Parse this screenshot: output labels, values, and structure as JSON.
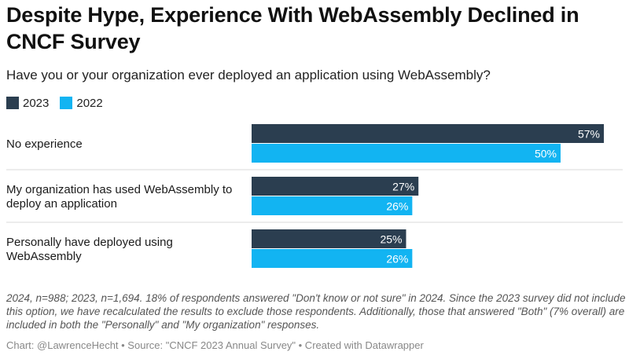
{
  "header": {
    "title": "Despite Hype, Experience With WebAssembly Declined in CNCF Survey",
    "subtitle": "Have you or your organization ever deployed an application using WebAssembly?"
  },
  "legend": [
    {
      "label": "2023",
      "color": "#2b3e50"
    },
    {
      "label": "2022",
      "color": "#12b4f2"
    }
  ],
  "chart_data": {
    "type": "bar",
    "orientation": "horizontal",
    "categories": [
      "No experience",
      "My organization has used WebAssembly to deploy an application",
      "Personally have deployed using WebAssembly"
    ],
    "category_lines": [
      [
        "No experience"
      ],
      [
        "My organization has used WebAssembly to",
        "deploy an application"
      ],
      [
        "Personally have deployed using",
        "WebAssembly"
      ]
    ],
    "series": [
      {
        "name": "2023",
        "color": "#2b3e50",
        "values": [
          57,
          27,
          25
        ],
        "labels": [
          "57%",
          "27%",
          "25%"
        ]
      },
      {
        "name": "2022",
        "color": "#12b4f2",
        "values": [
          50,
          26,
          26
        ],
        "labels": [
          "50%",
          "26%",
          "26%"
        ]
      }
    ],
    "xlim": [
      0,
      57
    ],
    "grid": false,
    "legend_position": "top-left"
  },
  "footer": {
    "note": "2024, n=988; 2023, n=1,694. 18% of respondents answered \"Don't know or not sure\" in 2024. Since the 2023 survey did not include this option, we have recalculated the results to exclude those respondents. Additionally, those that answered \"Both\" (7% overall) are included in both the \"Personally\" and \"My organization\" responses.",
    "credit": "Chart: @LawrenceHecht • Source: \"CNCF 2023 Annual Survey\" • Created with Datawrapper"
  }
}
